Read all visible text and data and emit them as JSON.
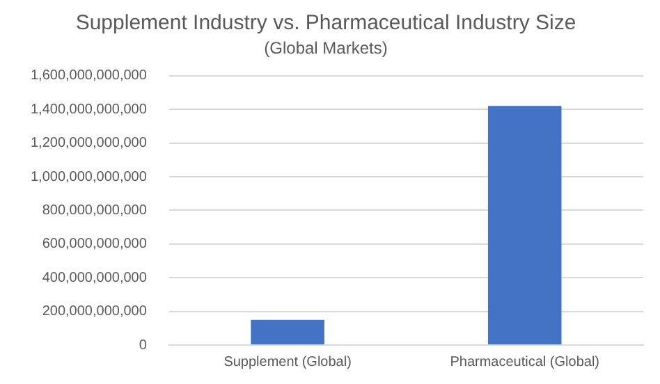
{
  "chart_data": {
    "type": "bar",
    "title": "Supplement Industry vs. Pharmaceutical Industry Size",
    "subtitle": "(Global Markets)",
    "categories": [
      "Supplement (Global)",
      "Pharmaceutical (Global)"
    ],
    "values": [
      150000000000,
      1420000000000
    ],
    "color": "#4472c4",
    "ylim": [
      0,
      1600000000000
    ],
    "yticks": [
      0,
      {
        "value": 200000000000,
        "label": "200,000,000,000"
      },
      {
        "value": 400000000000,
        "label": "400,000,000,000"
      },
      {
        "value": 600000000000,
        "label": "600,000,000,000"
      },
      {
        "value": 800000000000,
        "label": "800,000,000,000"
      },
      {
        "value": 1000000000000,
        "label": "1,000,000,000,000"
      },
      {
        "value": 1200000000000,
        "label": "1,200,000,000,000"
      },
      {
        "value": 1400000000000,
        "label": "1,400,000,000,000"
      },
      {
        "value": 1600000000000,
        "label": "1,600,000,000,000"
      }
    ],
    "grid": "y",
    "legend": false
  }
}
